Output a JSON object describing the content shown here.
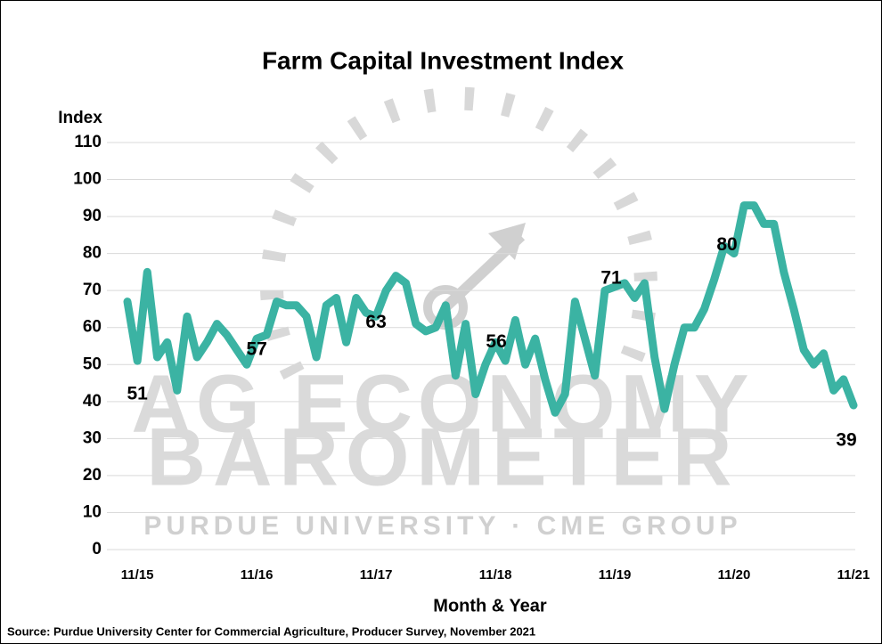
{
  "chart_data": {
    "type": "line",
    "title": "Farm Capital Investment Index",
    "y_label": "Index",
    "x_label": "Month & Year",
    "source": "Source: Purdue University Center for Commercial Agriculture, Producer Survey, November 2021",
    "watermark": [
      "AG ECONOMY",
      "BAROMETER",
      "PURDUE UNIVERSITY  ·  CME GROUP"
    ],
    "categories": [
      null,
      "11/15",
      null,
      null,
      null,
      null,
      null,
      null,
      null,
      null,
      null,
      null,
      null,
      "11/16",
      null,
      null,
      null,
      null,
      null,
      null,
      null,
      null,
      null,
      null,
      null,
      "11/17",
      null,
      null,
      null,
      null,
      null,
      null,
      null,
      null,
      null,
      null,
      null,
      "11/18",
      null,
      null,
      null,
      null,
      null,
      null,
      null,
      null,
      null,
      null,
      null,
      "11/19",
      null,
      null,
      null,
      null,
      null,
      null,
      null,
      null,
      null,
      null,
      null,
      "11/20",
      null,
      null,
      null,
      null,
      null,
      null,
      null,
      null,
      null,
      null,
      null,
      "11/21"
    ],
    "series": [
      {
        "name": "Farm Capital Investment Index",
        "color": "#3bb3a3",
        "values": [
          67,
          51,
          75,
          52,
          56,
          43,
          63,
          52,
          56,
          61,
          58,
          54,
          50,
          57,
          58,
          67,
          66,
          66,
          63,
          52,
          66,
          68,
          56,
          68,
          64,
          63,
          70,
          74,
          72,
          61,
          59,
          60,
          66,
          47,
          61,
          42,
          50,
          56,
          51,
          62,
          50,
          57,
          46,
          37,
          42,
          67,
          57,
          47,
          70,
          71,
          72,
          68,
          72,
          52,
          38,
          50,
          60,
          60,
          65,
          73,
          82,
          80,
          93,
          93,
          88,
          88,
          75,
          65,
          54,
          50,
          53,
          43,
          46,
          39
        ]
      }
    ],
    "ylim": [
      0,
      110
    ],
    "yticks": [
      0,
      10,
      20,
      30,
      40,
      50,
      60,
      70,
      80,
      90,
      100,
      110
    ],
    "grid": true
  }
}
